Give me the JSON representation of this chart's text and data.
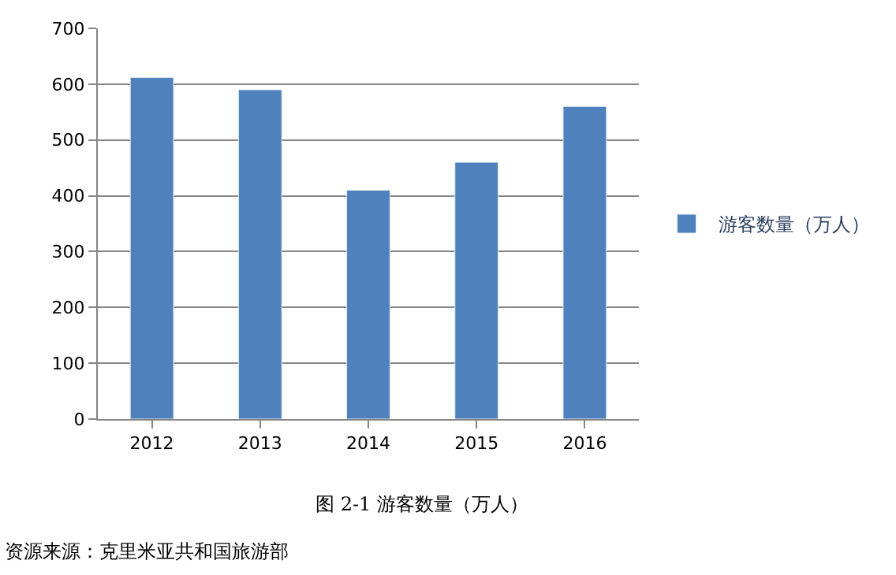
{
  "chart_data": {
    "type": "bar",
    "categories": [
      "2012",
      "2013",
      "2014",
      "2015",
      "2016"
    ],
    "series": [
      {
        "name": "游客数量（万人）",
        "color": "#4f81bd",
        "values": [
          612,
          590,
          410,
          460,
          560
        ]
      }
    ],
    "ylim": [
      0,
      700
    ],
    "yticks": [
      0,
      100,
      200,
      300,
      400,
      500,
      600,
      700
    ],
    "grid": "y",
    "legend": "right",
    "annotations": [
      "图 2-1 游客数量（万人）",
      "资源来源：克里米亚共和国旅游部"
    ]
  }
}
